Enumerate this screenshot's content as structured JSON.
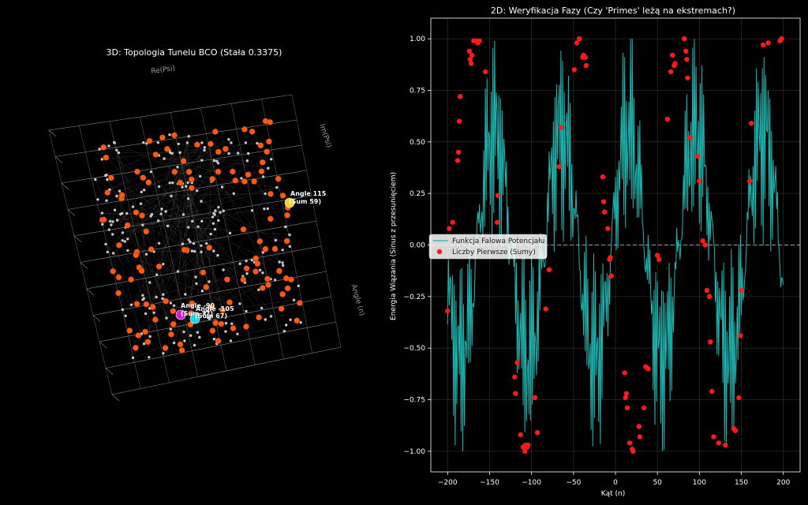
{
  "left_chart": {
    "title": "3D: Topologia Tunelu BCO (Stała 0.3375)",
    "axis_labels": {
      "x": "Re(Psi)",
      "y": "Im(Psi)",
      "z": "Angle (n)"
    },
    "annotations": [
      {
        "id": "a115",
        "line1": "Angle 115",
        "line2": "(Sum 59)",
        "color": "#ffd21a"
      },
      {
        "id": "a90",
        "line1": "Angle -90",
        "line2": "(Sum 37)",
        "color": "#d21ad2"
      },
      {
        "id": "a105",
        "line1": "Angle -105",
        "line2": "(Sum 67)",
        "color": "#19d4e6"
      }
    ]
  },
  "chart_data": {
    "type": "line",
    "title": "2D: Weryfikacja Fazy (Czy 'Primes' leżą na ekstremach?)",
    "xlabel": "Kąt (n)",
    "ylabel": "Energia Wiązania (Sinus z przesunięciem)",
    "xlim": [
      -220,
      220
    ],
    "ylim": [
      -1.1,
      1.1
    ],
    "xticks": [
      -200,
      -150,
      -100,
      -50,
      0,
      50,
      100,
      150,
      200
    ],
    "yticks": [
      -1.0,
      -0.75,
      -0.5,
      -0.25,
      0.0,
      0.25,
      0.5,
      0.75,
      1.0
    ],
    "xtick_labels": [
      "−200",
      "−150",
      "−100",
      "−50",
      "0",
      "50",
      "100",
      "150",
      "200"
    ],
    "ytick_labels": [
      "−1.00",
      "−0.75",
      "−0.50",
      "−0.25",
      "0.00",
      "0.25",
      "0.50",
      "0.75",
      "1.00"
    ],
    "grid": true,
    "legend_position": "center-left",
    "series": [
      {
        "name": "Funkcja Falowa Potencjału",
        "color": "#1fb5b0",
        "type": "line",
        "x_range": [
          -200,
          200
        ],
        "step": 1
      },
      {
        "name": "Liczby Pierwsze (Sumy)",
        "color": "#ff1a1a",
        "type": "scatter",
        "x": [
          -200,
          -198,
          -194,
          -188,
          -187,
          -186,
          -185,
          -174,
          -173,
          -172,
          -171,
          -169,
          -166,
          -164,
          -162,
          -155,
          -141,
          -140,
          -120,
          -119,
          -117,
          -113,
          -110,
          -108,
          -107,
          -105,
          -104,
          -96,
          -93,
          -83,
          -79,
          -67,
          -65,
          -49,
          -46,
          -43,
          -39,
          -38,
          -36,
          -35,
          -15,
          -14,
          -13,
          -9,
          -7,
          -6,
          -5,
          11,
          12,
          13,
          14,
          17,
          20,
          21,
          28,
          29,
          34,
          36,
          39,
          50,
          52,
          62,
          66,
          68,
          70,
          71,
          82,
          84,
          85,
          86,
          89,
          98,
          100,
          104,
          107,
          109,
          112,
          113,
          115,
          117,
          123,
          131,
          141,
          143,
          147,
          149,
          150,
          160,
          162,
          176,
          182,
          196,
          198
        ],
        "y": [
          -0.32,
          0.08,
          0.11,
          0.41,
          0.45,
          0.6,
          0.72,
          0.94,
          0.9,
          0.88,
          0.92,
          0.99,
          0.99,
          0.98,
          0.99,
          0.84,
          0.11,
          0.24,
          -0.64,
          -0.72,
          -0.57,
          -0.92,
          -0.98,
          -1.0,
          -0.97,
          -0.98,
          -0.97,
          -0.74,
          -0.91,
          -0.31,
          -0.12,
          0.38,
          0.57,
          0.85,
          0.98,
          1.0,
          0.91,
          0.92,
          0.91,
          0.87,
          0.33,
          0.21,
          0.16,
          0.08,
          -0.07,
          -0.06,
          -0.15,
          -0.62,
          -0.74,
          -0.72,
          -0.79,
          -0.96,
          -0.99,
          -1.0,
          -0.88,
          -0.93,
          -0.79,
          -0.59,
          -0.6,
          -0.05,
          -0.07,
          0.61,
          0.84,
          0.92,
          0.87,
          0.88,
          1.0,
          0.94,
          0.9,
          0.81,
          0.52,
          0.43,
          0.31,
          0.02,
          0.0,
          -0.22,
          -0.25,
          -0.47,
          -0.71,
          -0.93,
          -0.96,
          -0.97,
          -0.89,
          -0.9,
          -0.74,
          -0.44,
          -0.22,
          0.31,
          0.59,
          0.97,
          0.98,
          0.99,
          1.0
        ]
      }
    ]
  }
}
